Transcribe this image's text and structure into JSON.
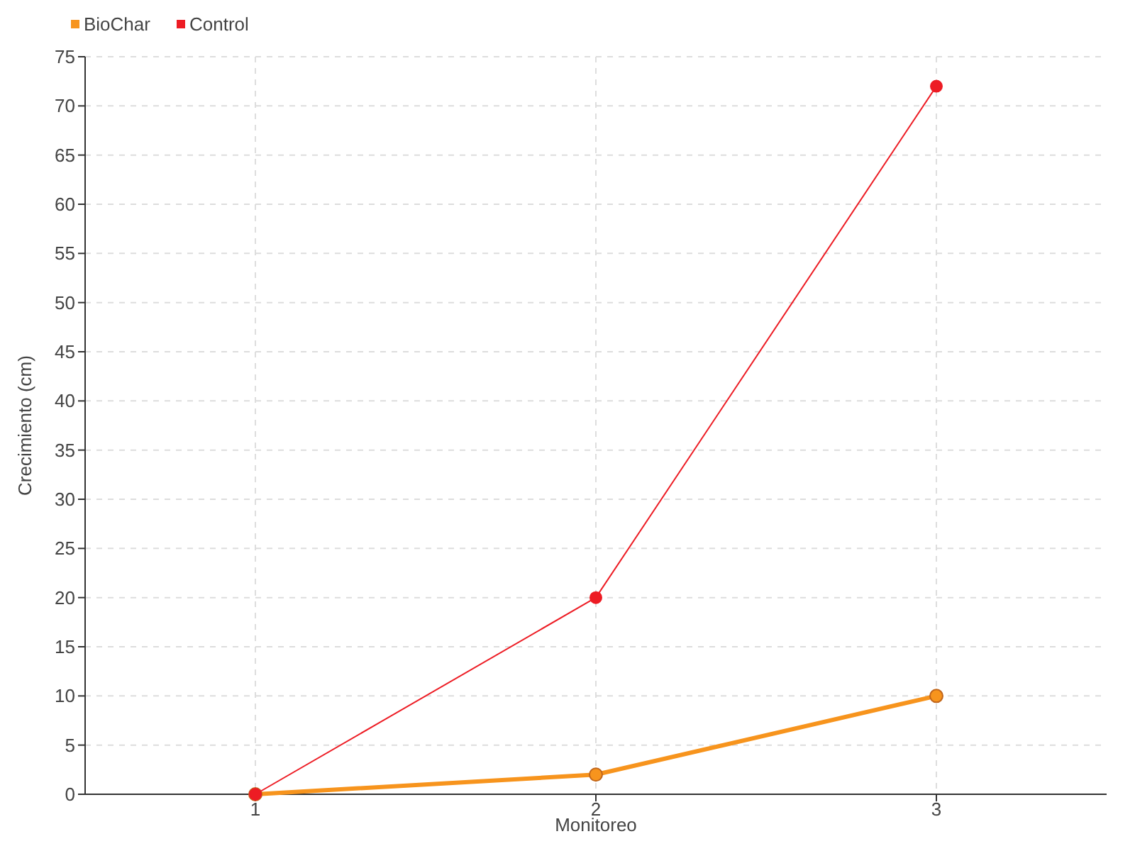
{
  "chart_data": {
    "type": "line",
    "xlabel": "Monitoreo",
    "ylabel": "Crecimiento (cm)",
    "x": [
      1,
      2,
      3
    ],
    "xlim": [
      0.5,
      3.5
    ],
    "xticks": [
      1,
      2,
      3
    ],
    "ylim": [
      0,
      75
    ],
    "yticks": [
      0,
      5,
      10,
      15,
      20,
      25,
      30,
      35,
      40,
      45,
      50,
      55,
      60,
      65,
      70,
      75
    ],
    "series": [
      {
        "name": "BioChar",
        "color": "#f7941d",
        "values": [
          0,
          2,
          10
        ]
      },
      {
        "name": "Control",
        "color": "#ed1c24",
        "values": [
          0,
          20,
          72
        ]
      }
    ],
    "grid": true,
    "legend": "top left",
    "marker": "circle"
  }
}
